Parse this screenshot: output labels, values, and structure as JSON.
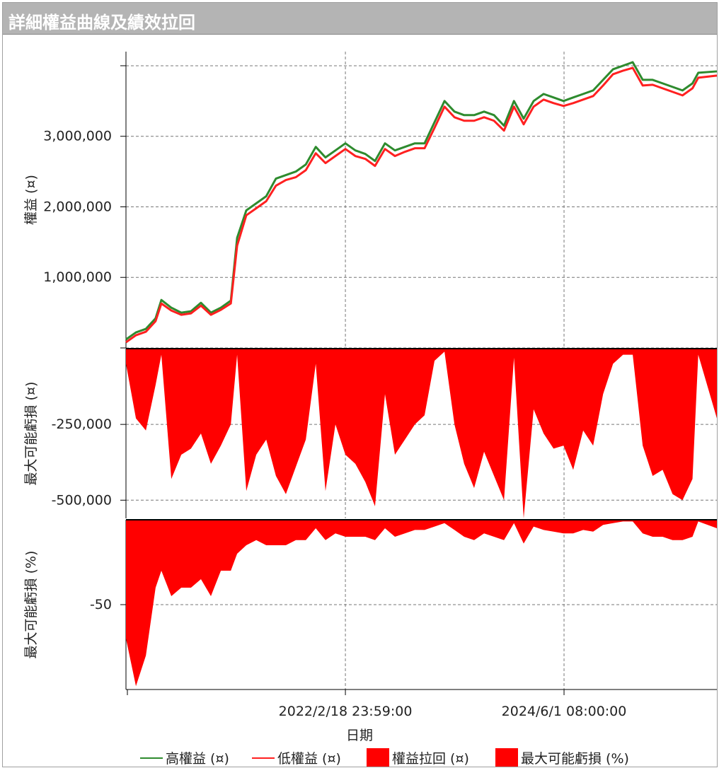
{
  "window": {
    "title": "詳細權益曲線及績效拉回"
  },
  "chart_data": {
    "type": "line",
    "xlabel": "日期",
    "x_unit": "days since start",
    "x_range": [
      0,
      2254
    ],
    "x_ticks": [
      {
        "value": 837,
        "label": "2022/2/18 23:59:00"
      },
      {
        "value": 1671,
        "label": "2024/6/1 08:00:00"
      }
    ],
    "x": [
      0,
      38,
      76,
      113,
      135,
      173,
      211,
      248,
      286,
      324,
      362,
      400,
      424,
      459,
      497,
      535,
      572,
      610,
      648,
      686,
      724,
      761,
      799,
      837,
      875,
      913,
      950,
      988,
      1026,
      1064,
      1102,
      1139,
      1177,
      1215,
      1253,
      1290,
      1328,
      1366,
      1404,
      1442,
      1480,
      1517,
      1555,
      1593,
      1631,
      1669,
      1706,
      1744,
      1782,
      1820,
      1858,
      1896,
      1933,
      1971,
      2009,
      2047,
      2085,
      2123,
      2161,
      2183,
      2254
    ],
    "panels": [
      {
        "name": "equity",
        "ylabel": "權益 (¤)",
        "ylim": [
          0,
          4200000
        ],
        "y_ticks": [
          {
            "value": 1000000,
            "label": "1,000,000"
          },
          {
            "value": 2000000,
            "label": "2,000,000"
          },
          {
            "value": 3000000,
            "label": "3,000,000"
          },
          {
            "value": 4000000,
            "label": ""
          },
          {
            "value": 0,
            "label": ""
          }
        ],
        "series": [
          {
            "name": "高權益 (¤)",
            "color": "#2e8b2e",
            "values": [
              120000,
              220000,
              270000,
              420000,
              680000,
              570000,
              500000,
              520000,
              640000,
              500000,
              570000,
              670000,
              1560000,
              1950000,
              2050000,
              2150000,
              2400000,
              2450000,
              2500000,
              2600000,
              2850000,
              2700000,
              2800000,
              2900000,
              2800000,
              2750000,
              2650000,
              2900000,
              2800000,
              2850000,
              2900000,
              2900000,
              3200000,
              3500000,
              3350000,
              3300000,
              3300000,
              3350000,
              3300000,
              3150000,
              3500000,
              3250000,
              3500000,
              3600000,
              3550000,
              3500000,
              3550000,
              3600000,
              3650000,
              3800000,
              3950000,
              4000000,
              4050000,
              3800000,
              3800000,
              3750000,
              3700000,
              3650000,
              3750000,
              3900000,
              3920000
            ]
          },
          {
            "name": "低權益 (¤)",
            "color": "#ff2020",
            "values": [
              80000,
              180000,
              230000,
              380000,
              630000,
              530000,
              470000,
              490000,
              600000,
              470000,
              540000,
              630000,
              1450000,
              1880000,
              1980000,
              2080000,
              2300000,
              2380000,
              2420000,
              2520000,
              2760000,
              2620000,
              2720000,
              2820000,
              2720000,
              2680000,
              2580000,
              2820000,
              2720000,
              2780000,
              2830000,
              2830000,
              3120000,
              3420000,
              3270000,
              3220000,
              3220000,
              3270000,
              3220000,
              3080000,
              3420000,
              3170000,
              3420000,
              3520000,
              3470000,
              3430000,
              3470000,
              3520000,
              3570000,
              3720000,
              3880000,
              3930000,
              3970000,
              3720000,
              3730000,
              3680000,
              3630000,
              3580000,
              3680000,
              3830000,
              3860000
            ]
          }
        ]
      },
      {
        "name": "drawdown",
        "ylabel": "最大可能虧損 (¤)",
        "ylim": [
          -560000,
          0
        ],
        "y_ticks": [
          {
            "value": -250000,
            "label": "-250,000"
          },
          {
            "value": -500000,
            "label": "-500,000"
          }
        ],
        "series": [
          {
            "name": "權益拉回 (¤)",
            "color": "#ff0000",
            "values": [
              -50000,
              -230000,
              -270000,
              -120000,
              -20000,
              -430000,
              -350000,
              -330000,
              -280000,
              -380000,
              -320000,
              -250000,
              -20000,
              -470000,
              -350000,
              -300000,
              -420000,
              -480000,
              -390000,
              -300000,
              -50000,
              -470000,
              -250000,
              -350000,
              -380000,
              -440000,
              -520000,
              -150000,
              -350000,
              -300000,
              -250000,
              -220000,
              -40000,
              -10000,
              -250000,
              -380000,
              -460000,
              -340000,
              -420000,
              -500000,
              -30000,
              -560000,
              -200000,
              -280000,
              -330000,
              -320000,
              -400000,
              -270000,
              -320000,
              -150000,
              -50000,
              -20000,
              -20000,
              -320000,
              -420000,
              -400000,
              -480000,
              -500000,
              -430000,
              -20000,
              -230000
            ]
          }
        ]
      },
      {
        "name": "drawdown_pct",
        "ylabel": "最大可能虧損 (%)",
        "ylim": [
          -100,
          0
        ],
        "y_ticks": [
          {
            "value": -50,
            "label": "-50"
          }
        ],
        "series": [
          {
            "name": "最大可能虧損 (%)",
            "color": "#ff0000",
            "values": [
              -70,
              -98,
              -80,
              -40,
              -30,
              -45,
              -40,
              -40,
              -35,
              -45,
              -30,
              -30,
              -20,
              -15,
              -12,
              -15,
              -15,
              -15,
              -12,
              -12,
              -5,
              -12,
              -8,
              -10,
              -10,
              -10,
              -12,
              -5,
              -10,
              -8,
              -6,
              -6,
              -4,
              -2,
              -6,
              -10,
              -12,
              -8,
              -10,
              -12,
              -2,
              -14,
              -4,
              -6,
              -7,
              -8,
              -8,
              -6,
              -7,
              -3,
              -2,
              -1,
              -1,
              -8,
              -10,
              -10,
              -12,
              -12,
              -10,
              -1,
              -5
            ]
          }
        ]
      }
    ],
    "legend": {
      "placement": "bottom",
      "entries": [
        "高權益 (¤)",
        "低權益 (¤)",
        "權益拉回 (¤)",
        "最大可能虧損 (%)"
      ]
    }
  }
}
